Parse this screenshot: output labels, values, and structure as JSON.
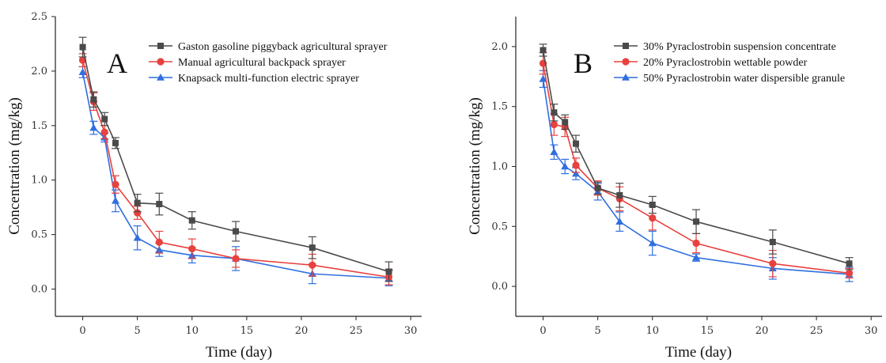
{
  "chart_data": [
    {
      "type": "line",
      "panel_label": "A",
      "xlabel": "Time (day)",
      "ylabel": "Concentration (mg/kg)",
      "xlim": [
        -2.5,
        31
      ],
      "ylim": [
        -0.25,
        2.5
      ],
      "xticks": [
        0,
        5,
        10,
        15,
        20,
        25,
        30
      ],
      "xtick_labels": [
        "0",
        "5",
        "10",
        "15",
        "20",
        "25",
        "30"
      ],
      "yticks": [
        0,
        0.5,
        1.0,
        1.5,
        2.0,
        2.5
      ],
      "ytick_labels": [
        "0.0",
        "0.5",
        "1.0",
        "1.5",
        "2.0",
        "2.5"
      ],
      "grid": false,
      "legend_position": "top-right",
      "x": [
        0,
        1,
        2,
        3,
        5,
        7,
        10,
        14,
        21,
        28
      ],
      "series": [
        {
          "name": "Gaston gasoline piggyback agricultural sprayer",
          "color": "#4a4a4a",
          "marker": "square",
          "values": [
            2.22,
            1.74,
            1.56,
            1.34,
            0.79,
            0.78,
            0.63,
            0.53,
            0.38,
            0.16
          ],
          "errors": [
            0.09,
            0.07,
            0.06,
            0.05,
            0.08,
            0.1,
            0.08,
            0.09,
            0.1,
            0.09
          ]
        },
        {
          "name": "Manual agricultural backpack sprayer",
          "color": "#e8413e",
          "marker": "circle",
          "values": [
            2.1,
            1.72,
            1.44,
            0.96,
            0.7,
            0.43,
            0.37,
            0.28,
            0.22,
            0.11
          ],
          "errors": [
            0.06,
            0.08,
            0.06,
            0.08,
            0.06,
            0.1,
            0.09,
            0.08,
            0.1,
            0.07
          ]
        },
        {
          "name": "Knapsack multi-function electric sprayer",
          "color": "#2f6fdf",
          "marker": "triangle",
          "values": [
            1.99,
            1.48,
            1.39,
            0.81,
            0.47,
            0.36,
            0.31,
            0.28,
            0.14,
            0.1
          ],
          "errors": [
            0.05,
            0.06,
            0.04,
            0.1,
            0.11,
            0.06,
            0.07,
            0.11,
            0.09,
            0.07
          ]
        }
      ]
    },
    {
      "type": "line",
      "panel_label": "B",
      "xlabel": "Time (day)",
      "ylabel": "Concentration (mg/kg)",
      "xlim": [
        -2.5,
        31
      ],
      "ylim": [
        -0.25,
        2.25
      ],
      "xticks": [
        0,
        5,
        10,
        15,
        20,
        25,
        30
      ],
      "xtick_labels": [
        "0",
        "5",
        "10",
        "15",
        "20",
        "25",
        "30"
      ],
      "yticks": [
        0,
        0.5,
        1.0,
        1.5,
        2.0
      ],
      "ytick_labels": [
        "0.0",
        "0.5",
        "1.0",
        "1.5",
        "2.0"
      ],
      "grid": false,
      "legend_position": "top-right",
      "x": [
        0,
        1,
        2,
        3,
        5,
        7,
        10,
        14,
        21,
        28
      ],
      "series": [
        {
          "name": "30% Pyraclostrobin suspension concentrate",
          "color": "#4a4a4a",
          "marker": "square",
          "values": [
            1.97,
            1.45,
            1.37,
            1.19,
            0.82,
            0.76,
            0.68,
            0.54,
            0.37,
            0.19
          ],
          "errors": [
            0.05,
            0.07,
            0.06,
            0.07,
            0.05,
            0.1,
            0.07,
            0.1,
            0.1,
            0.05
          ]
        },
        {
          "name": "20% Pyraclostrobin wettable powder",
          "color": "#e8413e",
          "marker": "circle",
          "values": [
            1.86,
            1.35,
            1.33,
            1.01,
            0.82,
            0.73,
            0.57,
            0.36,
            0.19,
            0.11
          ],
          "errors": [
            0.09,
            0.09,
            0.08,
            0.06,
            0.06,
            0.1,
            0.1,
            0.08,
            0.11,
            0.04
          ]
        },
        {
          "name": "50% Pyraclostrobin water dispersible granule",
          "color": "#2f6fdf",
          "marker": "triangle",
          "values": [
            1.73,
            1.12,
            1.0,
            0.94,
            0.79,
            0.54,
            0.36,
            0.24,
            0.15,
            0.1
          ],
          "errors": [
            0.07,
            0.06,
            0.06,
            0.05,
            0.07,
            0.08,
            0.1,
            0.03,
            0.09,
            0.06
          ]
        }
      ]
    }
  ]
}
